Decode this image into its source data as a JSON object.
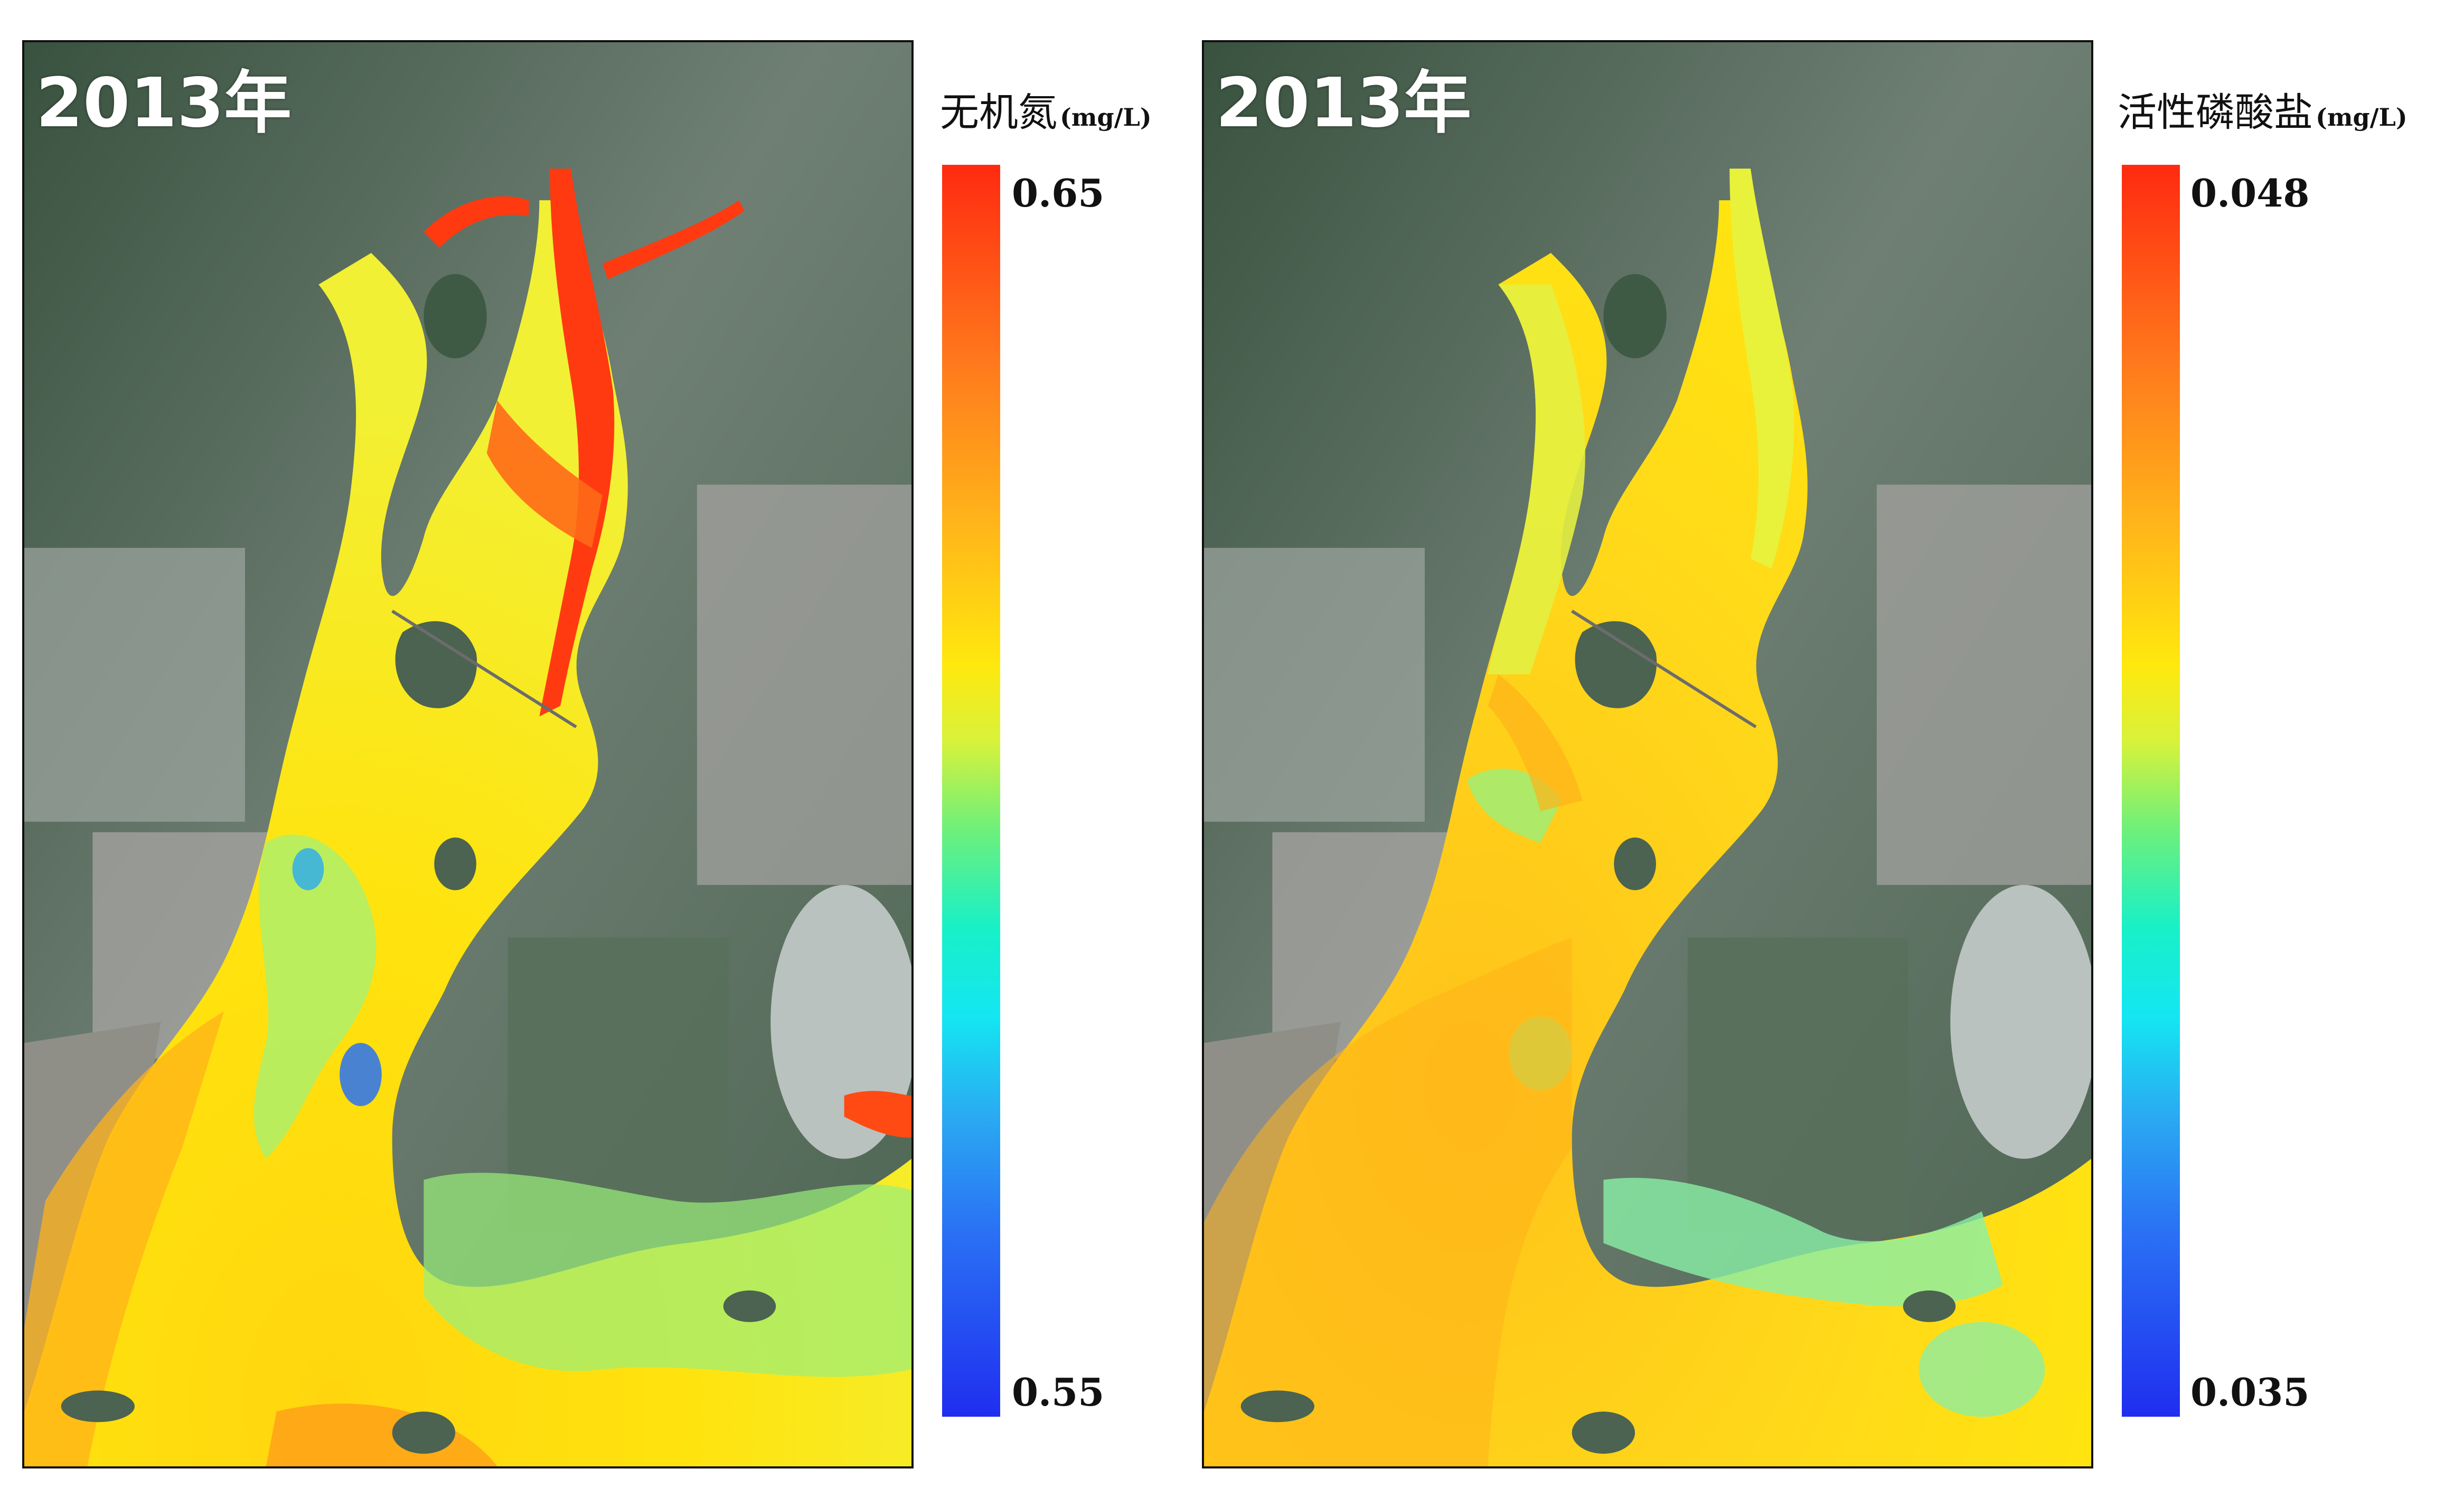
{
  "panels": [
    {
      "year_label": "2013年",
      "legend": {
        "name": "无机氮",
        "unit": "(mg/L)",
        "max_label": "0.65",
        "min_label": "0.55",
        "max_value": 0.65,
        "min_value": 0.55
      }
    },
    {
      "year_label": "2013年",
      "legend": {
        "name": "活性磷酸盐",
        "unit": "(mg/L)",
        "max_label": "0.048",
        "min_label": "0.035",
        "max_value": 0.048,
        "min_value": 0.035
      }
    }
  ],
  "colors": {
    "land_dark": "#3f5a44",
    "land_light": "#8a9690",
    "urban": "#a9a6a4",
    "sea_gray": "#8c8c86",
    "water_high": "#ff2a10",
    "water_mid_high": "#ffb21a",
    "water_mid": "#ffe80e",
    "water_mid_low": "#9af06a",
    "water_low": "#2a72f4",
    "frame": "#111111"
  }
}
